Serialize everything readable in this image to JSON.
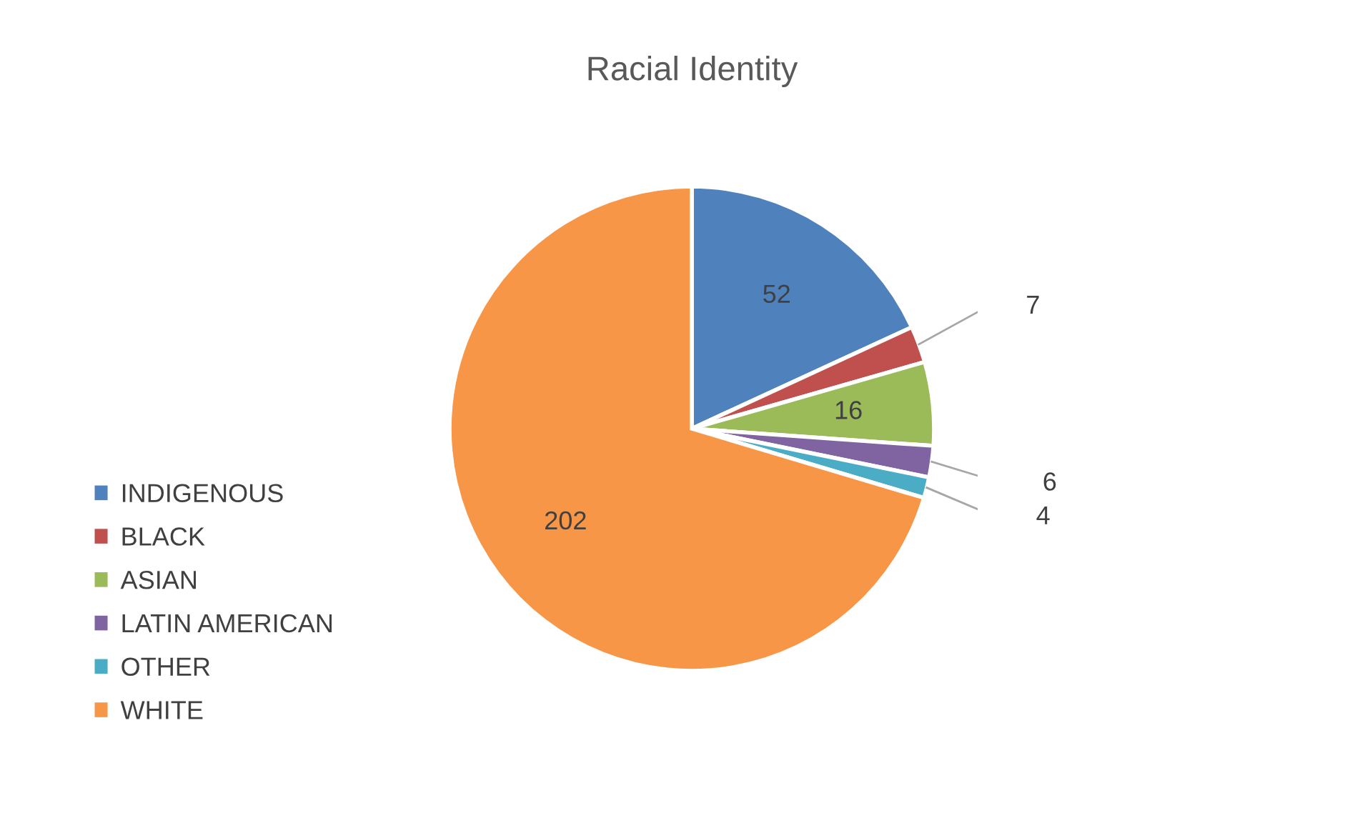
{
  "chart_data": {
    "type": "pie",
    "title": "Racial Identity",
    "categories": [
      "INDIGENOUS",
      "BLACK",
      "ASIAN",
      "LATIN AMERICAN",
      "OTHER",
      "WHITE"
    ],
    "values": [
      52,
      7,
      16,
      6,
      4,
      202
    ],
    "colors": [
      "#4f81bd",
      "#c0504d",
      "#9bbb59",
      "#8064a2",
      "#4bacc6",
      "#f79646"
    ],
    "data_labels": true,
    "legend": "left"
  }
}
